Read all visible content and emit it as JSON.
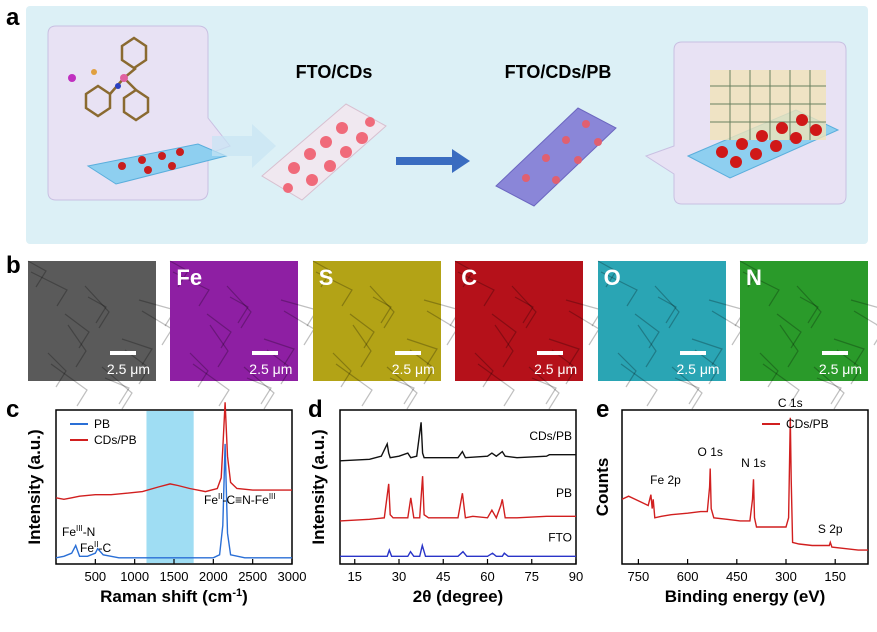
{
  "panel_a": {
    "label": "a",
    "step1": "FTO/CDs",
    "step2": "FTO/CDs/PB"
  },
  "panel_b": {
    "label": "b",
    "tiles": [
      {
        "element": "",
        "scale": "2.5 μm",
        "color": "#5a5a5a"
      },
      {
        "element": "Fe",
        "scale": "2.5 μm",
        "color": "#8e1fa3"
      },
      {
        "element": "S",
        "scale": "2.5 μm",
        "color": "#b3a316"
      },
      {
        "element": "C",
        "scale": "2.5 μm",
        "color": "#b5111a"
      },
      {
        "element": "O",
        "scale": "2.5 μm",
        "color": "#2aa5b4"
      },
      {
        "element": "N",
        "scale": "2.5 μm",
        "color": "#2a9a2a"
      }
    ]
  },
  "chart_data": [
    {
      "panel": "c",
      "type": "line",
      "xlabel": "Raman shift (cm-1)",
      "ylabel": "Intensity (a.u.)",
      "xlim": [
        0,
        3000
      ],
      "xticks": [
        "500",
        "1000",
        "1500",
        "2000",
        "2500",
        "3000"
      ],
      "legend": "top-left",
      "highlight_band": [
        1150,
        1750
      ],
      "annotations": [
        "FeIII-N",
        "FeII-C",
        "FeII-C≡N-FeIII"
      ],
      "series": [
        {
          "name": "PB",
          "color": "#2a6fd6",
          "x": [
            0,
            100,
            200,
            250,
            300,
            400,
            500,
            530,
            600,
            700,
            800,
            900,
            1000,
            1200,
            1500,
            1800,
            2000,
            2080,
            2120,
            2150,
            2180,
            2220,
            2400,
            2600,
            2800,
            3000
          ],
          "y": [
            0.04,
            0.05,
            0.07,
            0.12,
            0.05,
            0.05,
            0.07,
            0.1,
            0.06,
            0.05,
            0.04,
            0.04,
            0.04,
            0.04,
            0.04,
            0.04,
            0.04,
            0.06,
            0.25,
            0.78,
            0.2,
            0.06,
            0.04,
            0.04,
            0.04,
            0.04
          ]
        },
        {
          "name": "CDs/PB",
          "color": "#d11f1f",
          "x": [
            0,
            100,
            200,
            300,
            500,
            700,
            900,
            1100,
            1300,
            1450,
            1550,
            1700,
            1900,
            2050,
            2100,
            2120,
            2150,
            2180,
            2220,
            2300,
            2500,
            2700,
            3000
          ],
          "y": [
            0.43,
            0.42,
            0.43,
            0.44,
            0.45,
            0.45,
            0.46,
            0.47,
            0.5,
            0.52,
            0.51,
            0.49,
            0.47,
            0.49,
            0.56,
            0.75,
            1.05,
            0.7,
            0.53,
            0.49,
            0.48,
            0.48,
            0.48
          ]
        }
      ]
    },
    {
      "panel": "d",
      "type": "line",
      "xlabel": "2θ (degree)",
      "ylabel": "Intensity (a.u.)",
      "xlim": [
        10,
        90
      ],
      "xticks": [
        "15",
        "30",
        "45",
        "60",
        "75",
        "90"
      ],
      "series": [
        {
          "name": "CDs/PB",
          "color": "#111111",
          "x": [
            10,
            20,
            24,
            26,
            26.5,
            27,
            30,
            33,
            34,
            36,
            37.5,
            38,
            38.5,
            40,
            50,
            51.5,
            52.5,
            60,
            61.5,
            63,
            65,
            66,
            70,
            80,
            81,
            90
          ],
          "y": [
            0.67,
            0.68,
            0.7,
            0.78,
            0.72,
            0.69,
            0.7,
            0.72,
            0.69,
            0.7,
            0.92,
            0.72,
            0.69,
            0.69,
            0.69,
            0.73,
            0.69,
            0.7,
            0.72,
            0.7,
            0.73,
            0.7,
            0.69,
            0.7,
            0.71,
            0.71
          ]
        },
        {
          "name": "PB",
          "color": "#d11f1f",
          "x": [
            10,
            20,
            25,
            26.5,
            27,
            28,
            33,
            34,
            35,
            37,
            38,
            38.5,
            40,
            50,
            51.5,
            52.5,
            55,
            60,
            61.5,
            63,
            64.5,
            65,
            66,
            70,
            80,
            90
          ],
          "y": [
            0.28,
            0.29,
            0.3,
            0.52,
            0.32,
            0.3,
            0.3,
            0.43,
            0.3,
            0.3,
            0.57,
            0.32,
            0.3,
            0.3,
            0.46,
            0.3,
            0.31,
            0.3,
            0.35,
            0.3,
            0.38,
            0.42,
            0.3,
            0.3,
            0.31,
            0.31
          ]
        },
        {
          "name": "FTO",
          "color": "#2a35c8",
          "x": [
            10,
            20,
            26,
            26.7,
            27.5,
            33,
            33.9,
            35,
            37,
            37.9,
            39,
            50,
            51.7,
            53,
            60,
            61.7,
            63,
            65,
            65.7,
            67,
            80,
            90
          ],
          "y": [
            0.05,
            0.05,
            0.05,
            0.09,
            0.05,
            0.05,
            0.08,
            0.05,
            0.05,
            0.12,
            0.05,
            0.05,
            0.08,
            0.05,
            0.05,
            0.07,
            0.05,
            0.05,
            0.07,
            0.05,
            0.05,
            0.05
          ]
        }
      ]
    },
    {
      "panel": "e",
      "type": "line",
      "xlabel": "Binding energy (eV)",
      "ylabel": "Counts",
      "xlim": [
        800,
        50
      ],
      "xticks": [
        "750",
        "600",
        "450",
        "300",
        "150"
      ],
      "legend": "top-right",
      "annotations": [
        "Fe 2p",
        "O 1s",
        "N 1s",
        "C 1s",
        "S 2p"
      ],
      "series": [
        {
          "name": "CDs/PB",
          "color": "#d11f1f",
          "x": [
            800,
            780,
            760,
            740,
            720,
            712,
            708,
            705,
            700,
            680,
            650,
            600,
            560,
            540,
            533,
            531,
            528,
            520,
            480,
            440,
            410,
            402,
            399,
            396,
            390,
            350,
            300,
            292,
            287,
            284,
            280,
            260,
            220,
            190,
            168,
            165,
            160,
            120,
            80,
            50
          ],
          "y": [
            0.42,
            0.44,
            0.42,
            0.4,
            0.38,
            0.45,
            0.36,
            0.42,
            0.3,
            0.31,
            0.32,
            0.33,
            0.34,
            0.34,
            0.5,
            0.62,
            0.36,
            0.3,
            0.29,
            0.28,
            0.28,
            0.42,
            0.55,
            0.3,
            0.24,
            0.24,
            0.24,
            0.3,
            0.95,
            0.55,
            0.14,
            0.13,
            0.12,
            0.12,
            0.12,
            0.14,
            0.11,
            0.1,
            0.09,
            0.09
          ]
        }
      ]
    }
  ]
}
